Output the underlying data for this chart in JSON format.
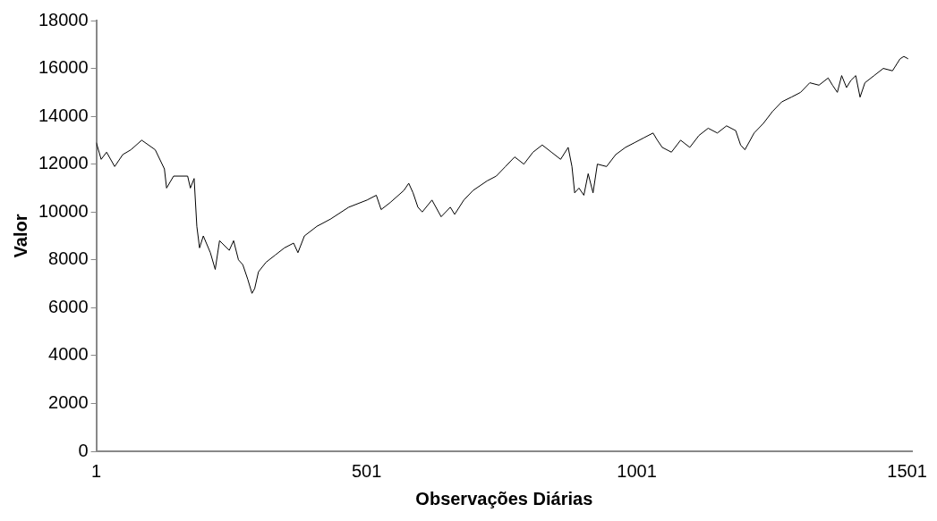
{
  "chart_data": {
    "type": "line",
    "xlabel": "Observações Diárias",
    "ylabel": "Valor",
    "xlim": [
      1,
      1510
    ],
    "xticks": [
      1,
      501,
      1001,
      1501
    ],
    "ylim": [
      0,
      18000
    ],
    "yticks": [
      0,
      2000,
      4000,
      6000,
      8000,
      10000,
      12000,
      14000,
      16000,
      18000
    ],
    "grid": false,
    "legend": false,
    "marker": "none",
    "line_style": "solid",
    "series": [
      {
        "color": "#000000",
        "x": [
          1,
          10,
          20,
          35,
          50,
          65,
          85,
          110,
          127,
          131,
          144,
          170,
          175,
          182,
          187,
          192,
          199,
          212,
          221,
          229,
          247,
          255,
          264,
          272,
          281,
          289,
          294,
          301,
          315,
          332,
          349,
          366,
          374,
          386,
          409,
          434,
          468,
          502,
          519,
          528,
          545,
          570,
          579,
          587,
          596,
          604,
          622,
          639,
          656,
          664,
          681,
          698,
          724,
          741,
          758,
          775,
          792,
          809,
          826,
          843,
          860,
          874,
          881,
          886,
          894,
          903,
          911,
          920,
          928,
          945,
          962,
          980,
          997,
          1014,
          1031,
          1039,
          1048,
          1065,
          1082,
          1099,
          1116,
          1133,
          1150,
          1167,
          1184,
          1193,
          1201,
          1218,
          1235,
          1252,
          1269,
          1287,
          1304,
          1321,
          1338,
          1355,
          1363,
          1372,
          1380,
          1389,
          1397,
          1406,
          1414,
          1423,
          1440,
          1457,
          1474,
          1488,
          1495,
          1503
        ],
        "values": [
          12900,
          12200,
          12500,
          11900,
          12400,
          12600,
          13000,
          12600,
          11800,
          11000,
          11500,
          11500,
          11000,
          11400,
          9400,
          8500,
          9000,
          8300,
          7600,
          8800,
          8400,
          8800,
          8000,
          7800,
          7200,
          6600,
          6800,
          7500,
          7900,
          8200,
          8500,
          8700,
          8300,
          9000,
          9400,
          9700,
          10200,
          10500,
          10700,
          10100,
          10400,
          10900,
          11200,
          10800,
          10200,
          10000,
          10500,
          9800,
          10200,
          9900,
          10500,
          10900,
          11300,
          11500,
          11900,
          12300,
          12000,
          12500,
          12800,
          12500,
          12200,
          12700,
          11900,
          10800,
          11000,
          10700,
          11600,
          10800,
          12000,
          11900,
          12400,
          12700,
          12900,
          13100,
          13300,
          13000,
          12700,
          12500,
          13000,
          12700,
          13200,
          13500,
          13300,
          13600,
          13400,
          12800,
          12600,
          13300,
          13700,
          14200,
          14600,
          14800,
          15000,
          15400,
          15300,
          15600,
          15300,
          15000,
          15700,
          15200,
          15500,
          15700,
          14800,
          15400,
          15700,
          16000,
          15900,
          16400,
          16500,
          16400
        ]
      }
    ]
  }
}
